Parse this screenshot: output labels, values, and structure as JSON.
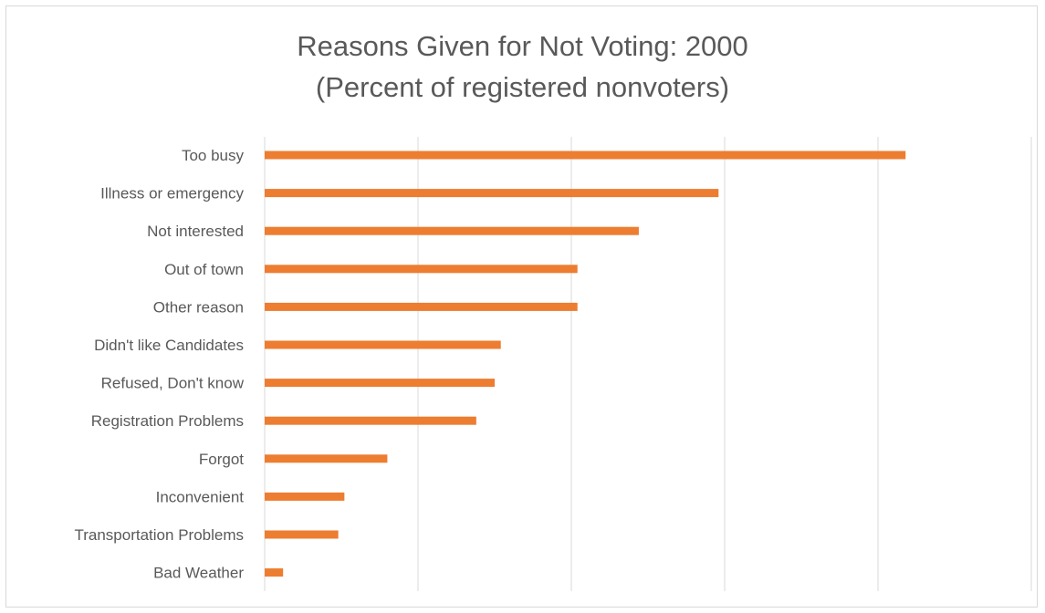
{
  "chart_data": {
    "type": "bar",
    "orientation": "horizontal",
    "title": "Reasons Given for Not Voting: 2000",
    "subtitle": "(Percent of registered nonvoters)",
    "categories": [
      "Too busy",
      "Illness or emergency",
      "Not interested",
      "Out of town",
      "Other reason",
      "Didn't like Candidates",
      "Refused, Don't know",
      "Registration Problems",
      "Forgot",
      "Inconvenient",
      "Transportation Problems",
      "Bad Weather"
    ],
    "values": [
      20.9,
      14.8,
      12.2,
      10.2,
      10.2,
      7.7,
      7.5,
      6.9,
      4.0,
      2.6,
      2.4,
      0.6
    ],
    "xlim": [
      0,
      25
    ],
    "xlabel": "",
    "ylabel": "",
    "grid": true,
    "legend": "none",
    "bar_color": "#ed7d31",
    "gridline_color": "#d9d9d9"
  }
}
